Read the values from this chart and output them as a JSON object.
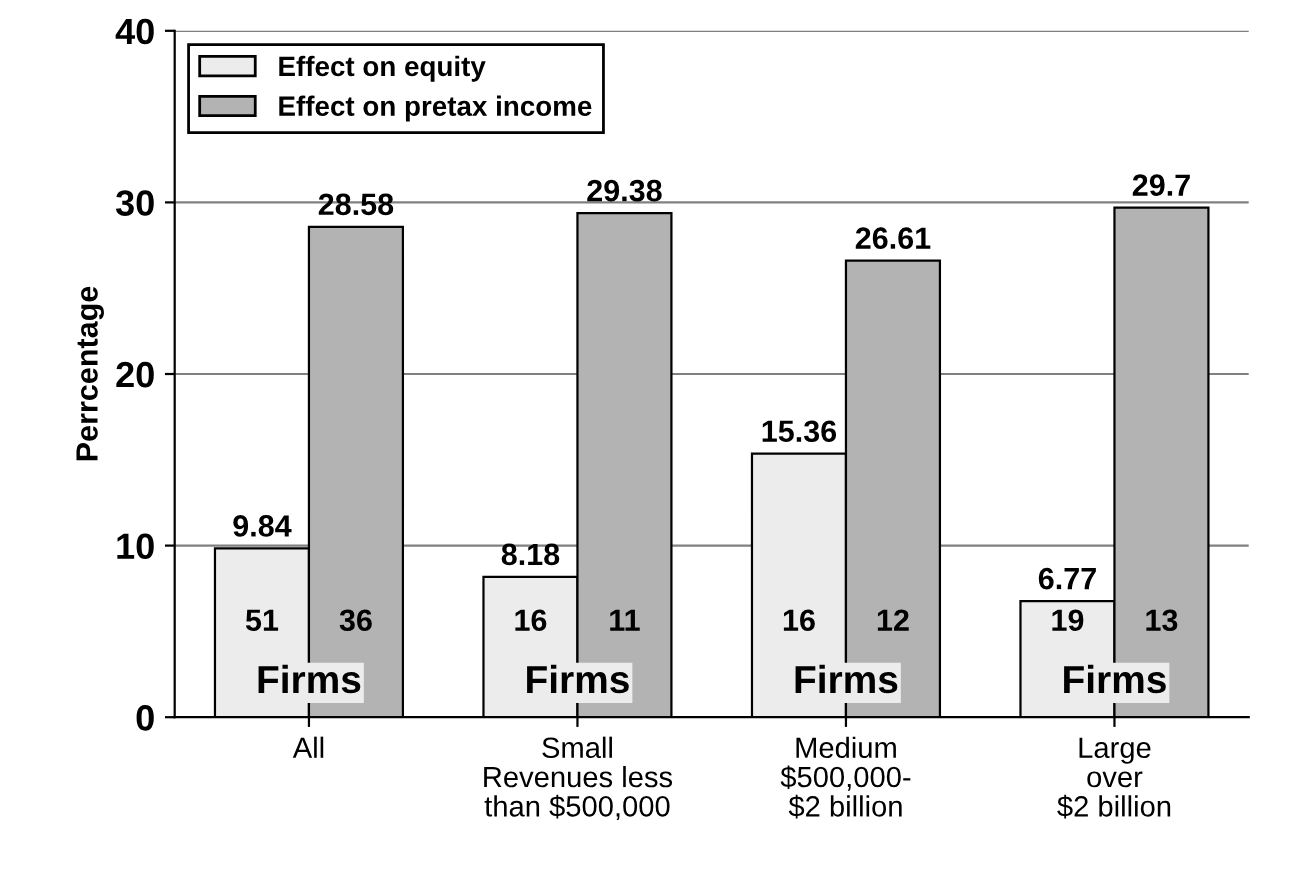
{
  "chart_data": {
    "type": "bar",
    "ylabel": "Perrcentage",
    "categories": [
      "All\n ",
      "Small\nRevenues less\nthan $500,000",
      "Medium\n$500,000-\n$2 billion",
      "Large\nover\n$2 billion"
    ],
    "series": [
      {
        "name": "Effect on equity",
        "color": "#ececec",
        "values": [
          9.84,
          8.18,
          15.36,
          6.77
        ]
      },
      {
        "name": "Effect on pretax income",
        "color": "#b3b3b3",
        "values": [
          28.58,
          29.38,
          26.61,
          29.7
        ]
      }
    ],
    "data_labels": true,
    "ylim": [
      0,
      40
    ],
    "yticks": [
      0,
      10,
      20,
      30,
      40
    ],
    "grid": "y",
    "legend": "top left",
    "annotations": [
      "51",
      "36",
      "Firms",
      "16",
      "11",
      "Firms",
      "16",
      "12",
      "Firms",
      "19",
      "13",
      "Firms"
    ]
  }
}
